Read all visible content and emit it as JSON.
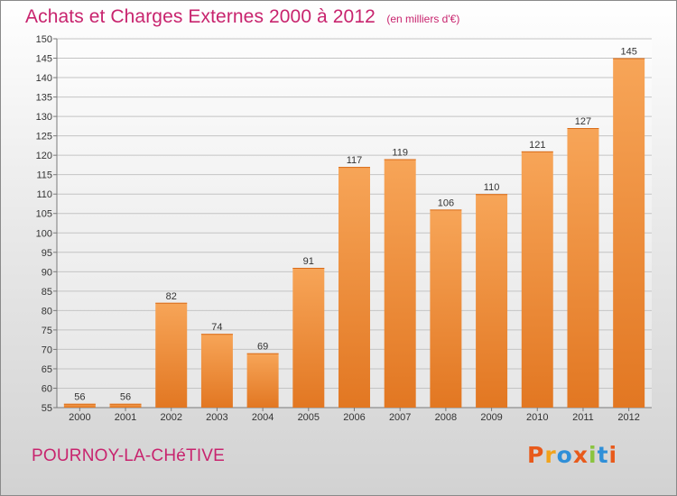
{
  "header": {
    "title": "Achats et Charges Externes 2000 à 2012",
    "subtitle": "(en milliers d'€)"
  },
  "footer": {
    "commune": "POURNOY-LA-CHéTIVE",
    "logo_text": "Proxiti"
  },
  "colors": {
    "title": "#c8246e",
    "bar_top": "#f7a558",
    "bar_bottom": "#e27722",
    "logo_letters": [
      "#e85a1b",
      "#f2a31b",
      "#2f8fd8",
      "#e85a1b",
      "#8ac43f",
      "#2f8fd8",
      "#e85a1b"
    ]
  },
  "chart_data": {
    "type": "bar",
    "title": "Achats et Charges Externes 2000 à 2012",
    "subtitle": "(en milliers d'€)",
    "categories": [
      "2000",
      "2001",
      "2002",
      "2003",
      "2004",
      "2005",
      "2006",
      "2007",
      "2008",
      "2009",
      "2010",
      "2011",
      "2012"
    ],
    "values": [
      56,
      56,
      82,
      74,
      69,
      91,
      117,
      119,
      106,
      110,
      121,
      127,
      145
    ],
    "ylim": [
      55,
      150
    ],
    "yticks": [
      55,
      60,
      65,
      70,
      75,
      80,
      85,
      90,
      95,
      100,
      105,
      110,
      115,
      120,
      125,
      130,
      135,
      140,
      145,
      150
    ],
    "grid": true,
    "data_labels": true
  }
}
